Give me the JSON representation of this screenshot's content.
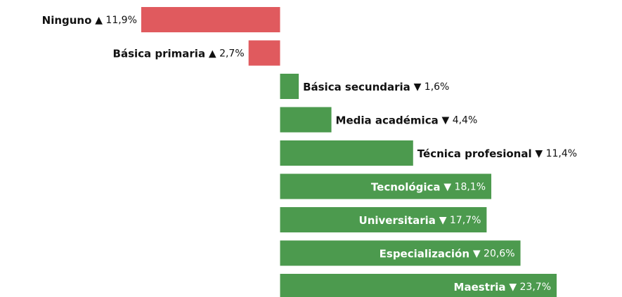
{
  "chart_data": {
    "type": "bar",
    "orientation": "horizontal",
    "categories": [
      "Ninguno",
      "Básica primaria",
      "Básica secundaria",
      "Media académica",
      "Técnica profesional",
      "Tecnológica",
      "Universitaria",
      "Especialización",
      "Maestria"
    ],
    "values": [
      11.9,
      2.7,
      -1.6,
      -4.4,
      -11.4,
      -18.1,
      -17.7,
      -20.6,
      -23.7
    ],
    "value_labels": [
      "▲ 11,9%",
      "▲ 2,7%",
      "▼ 1,6%",
      "▼ 4,4%",
      "▼ 11,4%",
      "▼ 18,1%",
      "▼ 17,7%",
      "▼ 20,6%",
      "▼ 23,7%"
    ],
    "colors": [
      "#e05a5e",
      "#e05a5e",
      "#4c9a4e",
      "#4c9a4e",
      "#4c9a4e",
      "#4c9a4e",
      "#4c9a4e",
      "#4c9a4e",
      "#4c9a4e"
    ],
    "xlim": [
      24,
      -29.3
    ]
  }
}
